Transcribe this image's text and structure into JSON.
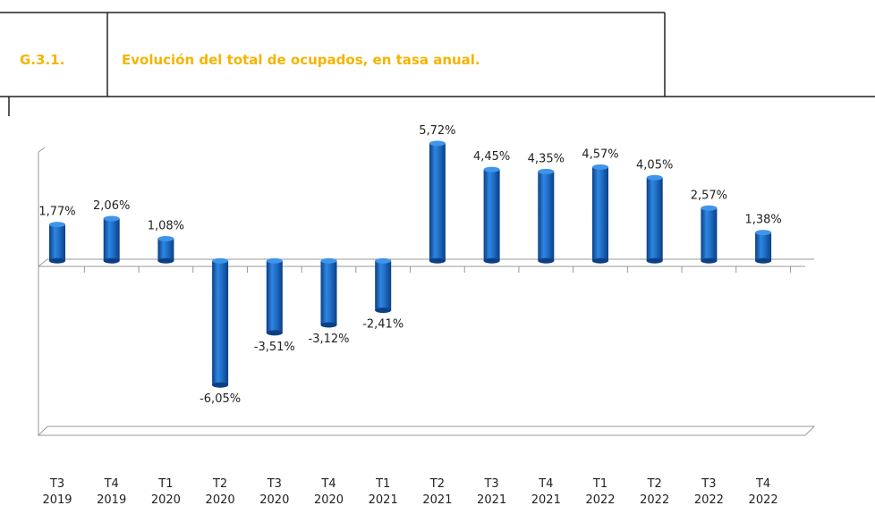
{
  "chart_data": {
    "type": "bar",
    "figure_number": "G.3.1.",
    "title": "Evolución del total de ocupados, en tasa anual.",
    "categories": [
      "T3 2019",
      "T4 2019",
      "T1 2020",
      "T2 2020",
      "T3 2020",
      "T4 2020",
      "T1 2021",
      "T2 2021",
      "T3 2021",
      "T4 2021",
      "T1 2022",
      "T2 2022",
      "T3 2022",
      "T4 2022"
    ],
    "values": [
      1.77,
      2.06,
      1.08,
      -6.05,
      -3.51,
      -3.12,
      -2.41,
      5.72,
      4.45,
      4.35,
      4.57,
      4.05,
      2.57,
      1.38
    ],
    "value_labels": [
      "1,77%",
      "2,06%",
      "1,08%",
      "-6,05%",
      "-3,51%",
      "-3,12%",
      "-2,41%",
      "5,72%",
      "4,45%",
      "4,35%",
      "4,57%",
      "4,05%",
      "2,57%",
      "1,38%"
    ],
    "color": "#1f6fc6",
    "ylim": [
      -8.5,
      6
    ]
  }
}
